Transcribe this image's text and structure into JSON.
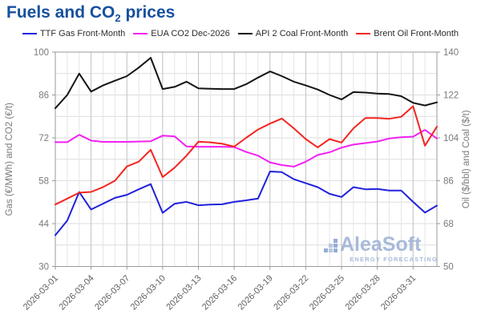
{
  "title": {
    "prefix": "Fuels and CO",
    "subscript": "2",
    "suffix": " prices"
  },
  "legend": {
    "items": [
      {
        "label": "TTF Gas Front-Month",
        "color": "#2121dd"
      },
      {
        "label": "EUA CO2 Dec-2026",
        "color": "#f320f3"
      },
      {
        "label": "API 2 Coal Front-Month",
        "color": "#141414"
      },
      {
        "label": "Brent Oil Front-Month",
        "color": "#f42420"
      }
    ]
  },
  "watermark": {
    "name": "AleaSoft",
    "tagline": "ENERGY FORECASTING"
  },
  "colors": {
    "title": "#17509f",
    "y_tick_label": "#7a7a7a",
    "x_tick_label": "#5f5f5f",
    "axis_title": "#7a7a7a",
    "grid_h": "#dedede",
    "grid_v_minor": "#e5e5e5",
    "grid_v_major": "#c0c0c0",
    "spine": "#9a9a9a",
    "legend_text": "#2b2b2b",
    "watermark": "#9fb3d6",
    "background": "#ffffff"
  },
  "chart_data": {
    "type": "line",
    "title": "Fuels and CO2 prices",
    "x": [
      "2026-03-01",
      "2026-03-02",
      "2026-03-03",
      "2026-03-04",
      "2026-03-05",
      "2026-03-06",
      "2026-03-07",
      "2026-03-08",
      "2026-03-09",
      "2026-03-10",
      "2026-03-11",
      "2026-03-12",
      "2026-03-13",
      "2026-03-14",
      "2026-03-15",
      "2026-03-16",
      "2026-03-17",
      "2026-03-18",
      "2026-03-19",
      "2026-03-20",
      "2026-03-21",
      "2026-03-22",
      "2026-03-23",
      "2026-03-24",
      "2026-03-25",
      "2026-03-26",
      "2026-03-27",
      "2026-03-28",
      "2026-03-29",
      "2026-03-30",
      "2026-03-31",
      "2026-04-01",
      "2026-04-02"
    ],
    "x_tick_labels": [
      "2026-03-01",
      "2026-03-04",
      "2026-03-07",
      "2026-03-10",
      "2026-03-13",
      "2026-03-16",
      "2026-03-19",
      "2026-03-22",
      "2026-03-25",
      "2026-03-28",
      "2026-03-31"
    ],
    "x_tick_every_days": 3,
    "series": [
      {
        "name": "TTF Gas Front-Month",
        "axis": "left",
        "color": "#2121dd",
        "values": [
          40.2,
          45.0,
          54.3,
          48.6,
          50.5,
          52.4,
          53.4,
          55.2,
          56.9,
          47.5,
          50.5,
          51.1,
          50.0,
          50.2,
          50.3,
          51.1,
          51.6,
          52.2,
          61.0,
          60.8,
          58.5,
          57.2,
          55.9,
          53.7,
          52.7,
          55.9,
          55.2,
          55.3,
          54.8,
          54.8,
          51.1,
          47.6,
          49.9
        ]
      },
      {
        "name": "EUA CO2 Dec-2026",
        "axis": "left",
        "color": "#f320f3",
        "values": [
          70.6,
          70.6,
          73.0,
          71.1,
          70.7,
          70.7,
          70.7,
          70.8,
          70.9,
          72.7,
          72.5,
          69.2,
          69.1,
          69.1,
          69.1,
          69.0,
          67.4,
          66.2,
          64.0,
          63.1,
          62.6,
          64.2,
          66.4,
          67.3,
          68.8,
          69.8,
          70.3,
          70.8,
          71.8,
          72.2,
          72.4,
          74.6,
          71.8
        ]
      },
      {
        "name": "API 2 Coal Front-Month",
        "axis": "right",
        "color": "#141414",
        "values": [
          116.4,
          122.0,
          131.0,
          123.4,
          126.0,
          128.0,
          129.9,
          133.5,
          137.6,
          124.5,
          125.4,
          127.6,
          124.8,
          124.6,
          124.5,
          124.5,
          126.5,
          129.3,
          131.9,
          129.9,
          127.6,
          126.0,
          124.3,
          122.0,
          120.1,
          123.2,
          123.0,
          122.6,
          122.4,
          121.5,
          118.7,
          117.6,
          118.9
        ]
      },
      {
        "name": "Brent Oil Front-Month",
        "axis": "right",
        "color": "#f42420",
        "values": [
          76.0,
          78.5,
          81.0,
          81.3,
          83.3,
          86.0,
          92.0,
          94.0,
          99.0,
          87.5,
          91.5,
          96.5,
          102.4,
          102.1,
          101.5,
          100.3,
          104.0,
          107.5,
          110.0,
          112.1,
          108.0,
          103.5,
          100.0,
          103.5,
          102.0,
          108.0,
          112.3,
          112.3,
          112.0,
          112.8,
          117.3,
          100.7,
          108.7
        ]
      }
    ],
    "left_axis": {
      "label": "Gas (€/MWh) and CO2 (€/t)",
      "min": 30,
      "max": 100,
      "ticks": [
        30,
        44,
        58,
        72,
        86,
        100
      ],
      "grid_step": 7
    },
    "right_axis": {
      "label": "Oil ($/bbl) and Coal ($/t)",
      "min": 50,
      "max": 140,
      "ticks": [
        50,
        68,
        86,
        104,
        122,
        140
      ]
    },
    "grid": true,
    "legend_position": "top-center",
    "line_width": 2
  }
}
